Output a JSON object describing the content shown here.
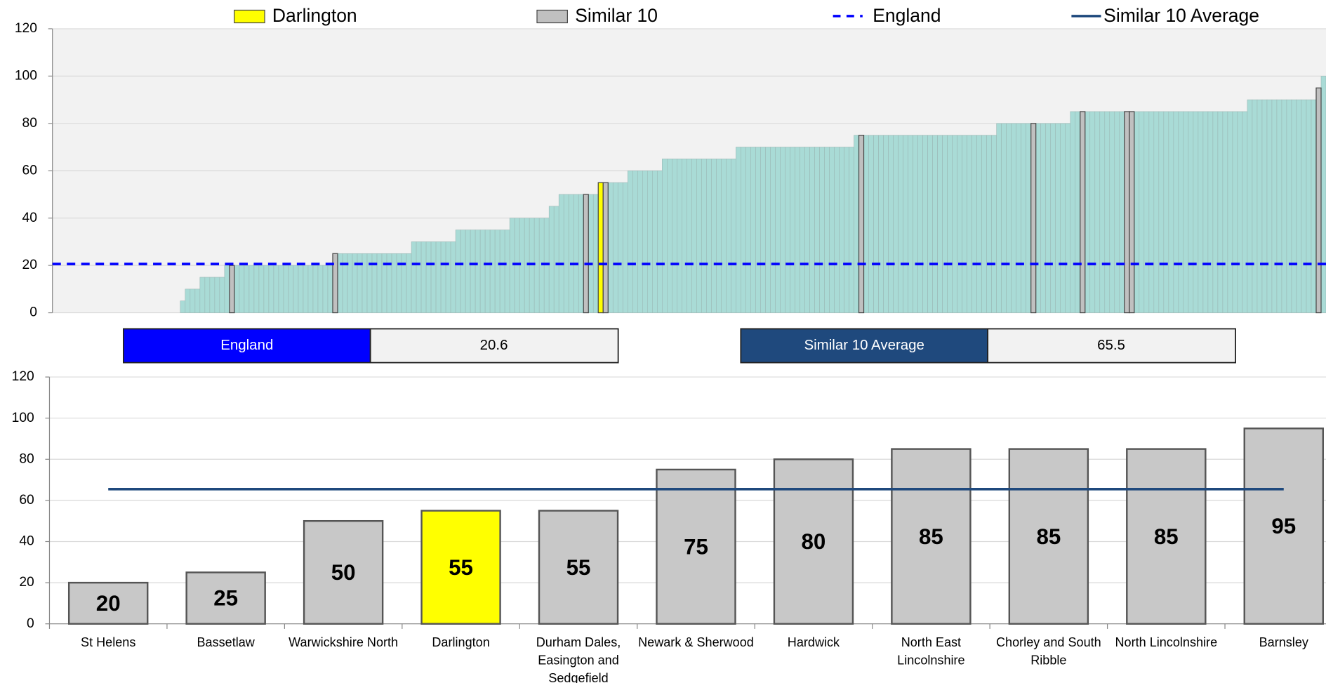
{
  "chart_data": [
    {
      "type": "bar",
      "legend": [
        {
          "name": "Darlington",
          "color": "#ffff00",
          "marker": "box"
        },
        {
          "name": "Similar 10",
          "color": "#c0c0c0",
          "marker": "box"
        },
        {
          "name": "England",
          "color": "#0000ff",
          "marker": "dashed"
        },
        {
          "name": "Similar 10 Average",
          "color": "#1f497d",
          "marker": "line"
        }
      ],
      "color": "#a9dbd6",
      "values": [
        0,
        0,
        0,
        0,
        0,
        0,
        0,
        0,
        0,
        0,
        0,
        0,
        0,
        0,
        0,
        0,
        0,
        0,
        0,
        0,
        0,
        0,
        0,
        0,
        0,
        0,
        5,
        10,
        10,
        10,
        15,
        15,
        15,
        15,
        15,
        20,
        20,
        20,
        20,
        20,
        20,
        20,
        20,
        20,
        20,
        20,
        20,
        20,
        20,
        20,
        20,
        20,
        20,
        20,
        20,
        20,
        20,
        25,
        25,
        25,
        25,
        25,
        25,
        25,
        25,
        25,
        25,
        25,
        25,
        25,
        25,
        25,
        25,
        30,
        30,
        30,
        30,
        30,
        30,
        30,
        30,
        30,
        35,
        35,
        35,
        35,
        35,
        35,
        35,
        35,
        35,
        35,
        35,
        40,
        40,
        40,
        40,
        40,
        40,
        40,
        40,
        45,
        45,
        50,
        50,
        50,
        50,
        50,
        50,
        50,
        50,
        55,
        55,
        55,
        55,
        55,
        55,
        60,
        60,
        60,
        60,
        60,
        60,
        60,
        65,
        65,
        65,
        65,
        65,
        65,
        65,
        65,
        65,
        65,
        65,
        65,
        65,
        65,
        65,
        70,
        70,
        70,
        70,
        70,
        70,
        70,
        70,
        70,
        70,
        70,
        70,
        70,
        70,
        70,
        70,
        70,
        70,
        70,
        70,
        70,
        70,
        70,
        70,
        75,
        75,
        75,
        75,
        75,
        75,
        75,
        75,
        75,
        75,
        75,
        75,
        75,
        75,
        75,
        75,
        75,
        75,
        75,
        75,
        75,
        75,
        75,
        75,
        75,
        75,
        75,
        75,
        75,
        80,
        80,
        80,
        80,
        80,
        80,
        80,
        80,
        80,
        80,
        80,
        80,
        80,
        80,
        80,
        85,
        85,
        85,
        85,
        85,
        85,
        85,
        85,
        85,
        85,
        85,
        85,
        85,
        85,
        85,
        85,
        85,
        85,
        85,
        85,
        85,
        85,
        85,
        85,
        85,
        85,
        85,
        85,
        85,
        85,
        85,
        85,
        85,
        85,
        85,
        85,
        90,
        90,
        90,
        90,
        90,
        90,
        90,
        90,
        90,
        90,
        90,
        90,
        90,
        90,
        95,
        100
      ],
      "highlights": [
        {
          "index": 36,
          "color": "#c0c0c0"
        },
        {
          "index": 57,
          "color": "#c0c0c0"
        },
        {
          "index": 108,
          "color": "#c0c0c0"
        },
        {
          "index": 111,
          "color": "#ffff00"
        },
        {
          "index": 112,
          "color": "#c0c0c0"
        },
        {
          "index": 164,
          "color": "#c0c0c0"
        },
        {
          "index": 199,
          "color": "#c0c0c0"
        },
        {
          "index": 209,
          "color": "#c0c0c0"
        },
        {
          "index": 218,
          "color": "#c0c0c0"
        },
        {
          "index": 219,
          "color": "#c0c0c0"
        },
        {
          "index": 257,
          "color": "#c0c0c0"
        }
      ],
      "reference_lines": [
        {
          "name": "England",
          "value": 20.6,
          "color": "#0000ff",
          "style": "dashed"
        }
      ],
      "ylim": [
        0,
        120
      ],
      "yticks": [
        0,
        20,
        40,
        60,
        80,
        100,
        120
      ],
      "grid": true
    },
    {
      "type": "bar",
      "categories": [
        "St Helens",
        "Bassetlaw",
        "Warwickshire North",
        "Darlington",
        "Durham Dales, Easington and Sedgefield",
        "Newark & Sherwood",
        "Hardwick",
        "North East Lincolnshire",
        "Chorley and South Ribble",
        "North Lincolnshire",
        "Barnsley"
      ],
      "values": [
        20,
        25,
        50,
        55,
        55,
        75,
        80,
        85,
        85,
        85,
        95
      ],
      "colors": [
        "#c8c8c8",
        "#c8c8c8",
        "#c8c8c8",
        "#ffff00",
        "#c8c8c8",
        "#c8c8c8",
        "#c8c8c8",
        "#c8c8c8",
        "#c8c8c8",
        "#c8c8c8",
        "#c8c8c8"
      ],
      "reference_lines": [
        {
          "name": "Similar 10 Average",
          "value": 65.5,
          "color": "#1f497d",
          "style": "solid"
        }
      ],
      "ylim": [
        0,
        120
      ],
      "yticks": [
        0,
        20,
        40,
        60,
        80,
        100,
        120
      ],
      "grid": true
    }
  ]
}
